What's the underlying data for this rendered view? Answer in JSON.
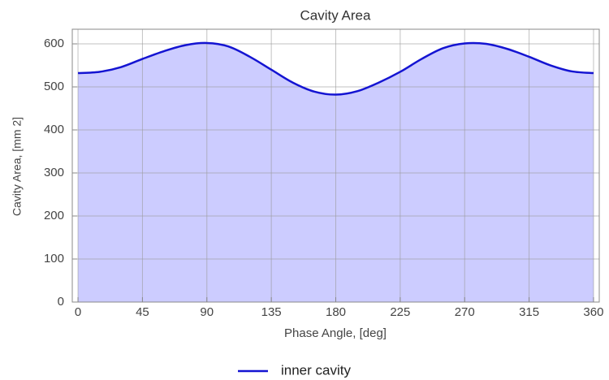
{
  "chart_data": {
    "type": "area-line",
    "title": "Cavity Area",
    "x_label": "Phase Angle, [deg]",
    "y_label": "Cavity Area, [mm 2]",
    "x": [
      0,
      15,
      30,
      45,
      60,
      75,
      90,
      105,
      120,
      135,
      150,
      165,
      180,
      195,
      210,
      225,
      240,
      255,
      270,
      285,
      300,
      315,
      330,
      345,
      360
    ],
    "series": [
      {
        "name": "inner cavity",
        "color": "#1414d2",
        "fill": "#ccccff",
        "values": [
          532,
          535,
          546,
          565,
          583,
          597,
          602,
          594,
          570,
          540,
          510,
          489,
          482,
          490,
          510,
          535,
          565,
          590,
          601,
          600,
          588,
          570,
          550,
          536,
          532
        ]
      }
    ],
    "xlim": [
      -4,
      364
    ],
    "xticks": [
      0,
      45,
      90,
      135,
      180,
      225,
      270,
      315,
      360
    ],
    "ylim": [
      0,
      634
    ],
    "yticks": [
      0,
      100,
      200,
      300,
      400,
      500,
      600
    ],
    "grid": true,
    "legend": "bottom"
  }
}
